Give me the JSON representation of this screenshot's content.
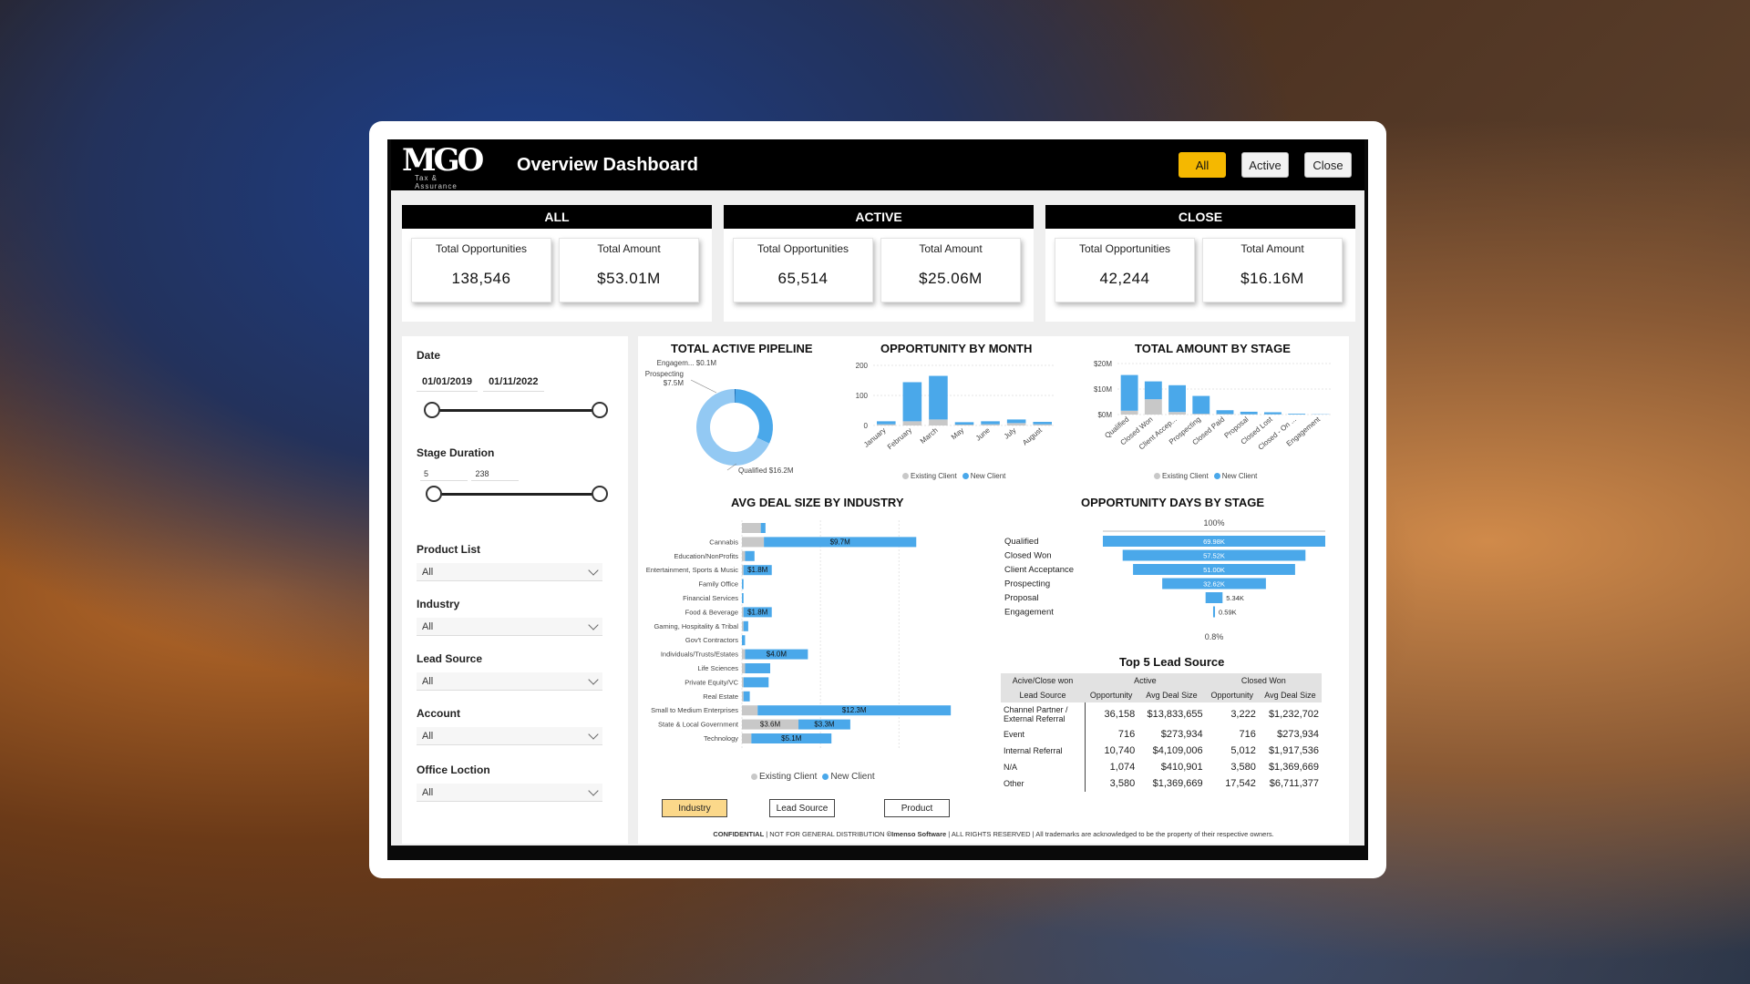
{
  "header": {
    "logo": "MGO",
    "logo_sub": "Tax & Assurance",
    "title": "Overview Dashboard",
    "buttons": {
      "all": "All",
      "active": "Active",
      "close": "Close"
    }
  },
  "kpi": [
    {
      "heading": "ALL",
      "opp_label": "Total Opportunities",
      "opp_value": "138,546",
      "amt_label": "Total Amount",
      "amt_value": "$53.01M"
    },
    {
      "heading": "ACTIVE",
      "opp_label": "Total Opportunities",
      "opp_value": "65,514",
      "amt_label": "Total Amount",
      "amt_value": "$25.06M"
    },
    {
      "heading": "CLOSE",
      "opp_label": "Total Opportunities",
      "opp_value": "42,244",
      "amt_label": "Total Amount",
      "amt_value": "$16.16M"
    }
  ],
  "filters": {
    "date_label": "Date",
    "date_start": "01/01/2019",
    "date_end": "01/11/2022",
    "stage_label": "Stage Duration",
    "stage_min": "5",
    "stage_max": "238",
    "product_label": "Product List",
    "product_value": "All",
    "industry_label": "Industry",
    "industry_value": "All",
    "lead_label": "Lead Source",
    "lead_value": "All",
    "account_label": "Account",
    "account_value": "All",
    "office_label": "Office Loction",
    "office_value": "All"
  },
  "colors": {
    "new_client": "#4aa8ea",
    "existing_client": "#c8c8c8",
    "pipeline_light": "#93c9f3",
    "accent": "#f5b800",
    "selected_tab": "#fbd88a"
  },
  "chart_data": [
    {
      "id": "pipeline",
      "type": "pie",
      "title": "TOTAL ACTIVE PIPELINE",
      "labels": [
        "Engagem...",
        "Prospecting",
        "Qualified"
      ],
      "values": [
        0.1,
        7.5,
        16.2
      ],
      "value_labels": [
        "$0.1M",
        "$7.5M",
        "$16.2M"
      ]
    },
    {
      "id": "by_month",
      "type": "bar",
      "title": "OPPORTUNITY BY MONTH",
      "categories": [
        "January",
        "February",
        "March",
        "May",
        "June",
        "July",
        "August"
      ],
      "yticks": [
        "0",
        "100",
        "200"
      ],
      "ylim": [
        0,
        200
      ],
      "series": [
        {
          "name": "Existing Client",
          "values": [
            4,
            14,
            20,
            3,
            4,
            8,
            4
          ]
        },
        {
          "name": "New Client",
          "values": [
            10,
            130,
            145,
            8,
            10,
            12,
            8
          ]
        }
      ]
    },
    {
      "id": "by_stage",
      "type": "bar",
      "title": "TOTAL AMOUNT BY STAGE",
      "categories": [
        "Qualified",
        "Closed Won",
        "Client Accep...",
        "Prospecting",
        "Closed Paid",
        "Proposal",
        "Closed Lost",
        "Closed - On ...",
        "Engagement"
      ],
      "yticks": [
        "$0M",
        "$10M",
        "$20M"
      ],
      "ylim": [
        0,
        20
      ],
      "series": [
        {
          "name": "Existing Client",
          "values": [
            1.5,
            6.0,
            1.0,
            0.3,
            0.2,
            0.1,
            0.1,
            0.0,
            0.0
          ]
        },
        {
          "name": "New Client",
          "values": [
            14.0,
            7.0,
            10.5,
            7.0,
            1.5,
            1.0,
            0.8,
            0.3,
            0.1
          ]
        }
      ]
    },
    {
      "id": "deal_size",
      "type": "bar",
      "title": "AVG DEAL SIZE BY INDUSTRY",
      "categories": [
        "",
        "Cannabis",
        "Education/NonProfits",
        "Entertainment, Sports & Music",
        "Family Office",
        "Financial Services",
        "Food & Beverage",
        "Gaming, Hospitality & Tribal",
        "Gov't Contractors",
        "Individuals/Trusts/Estates",
        "Life Sciences",
        "Private Equity/VC",
        "Real Estate",
        "Small to Medium Enterprises",
        "State & Local Government",
        "Technology"
      ],
      "xticks": [
        "$0M",
        "$5M",
        "$10M"
      ],
      "xlim": [
        0,
        13
      ],
      "series": [
        {
          "name": "Existing Client",
          "values": [
            1.2,
            1.4,
            0.2,
            0.1,
            0.0,
            0.0,
            0.1,
            0.1,
            0.0,
            0.2,
            0.2,
            0.1,
            0.1,
            1.0,
            3.6,
            0.6
          ]
        },
        {
          "name": "New Client",
          "values": [
            0.3,
            9.7,
            0.6,
            1.8,
            0.1,
            0.1,
            1.8,
            0.3,
            0.2,
            4.0,
            1.6,
            1.6,
            0.4,
            12.3,
            3.3,
            5.1
          ]
        }
      ],
      "data_labels": [
        "",
        "$9.7M",
        "",
        "$1.8M",
        "",
        "",
        "$1.8M",
        "",
        "",
        "$4.0M",
        "",
        "",
        "",
        "$12.3M",
        "$3.3M",
        "$5.1M"
      ],
      "existing_labels": [
        "",
        "",
        "",
        "",
        "",
        "",
        "",
        "",
        "",
        "",
        "",
        "",
        "",
        "",
        "$3.6M",
        ""
      ]
    },
    {
      "id": "days_by_stage",
      "type": "bar",
      "title": "OPPORTUNITY DAYS BY STAGE",
      "categories": [
        "Qualified",
        "Closed Won",
        "Client Acceptance",
        "Prospecting",
        "Proposal",
        "Engagement"
      ],
      "values": [
        69.98,
        57.52,
        51.0,
        32.62,
        5.34,
        0.59
      ],
      "value_labels": [
        "69.98K",
        "57.52K",
        "51.00K",
        "32.62K",
        "5.34K",
        "0.59K"
      ],
      "top_label": "100%",
      "bottom_label": "0.8%"
    }
  ],
  "tabs": {
    "industry": "Industry",
    "lead_source": "Lead Source",
    "product": "Product"
  },
  "lead_table": {
    "title": "Top 5 Lead Source",
    "group_header": "Acive/Close won",
    "active_header": "Active",
    "closed_header": "Closed Won",
    "col_lead": "Lead Source",
    "col_opp": "Opportunity",
    "col_avg": "Avg Deal Size",
    "rows": [
      {
        "lead": "Channel Partner / External Referral",
        "a_opp": "36,158",
        "a_avg": "$13,833,655",
        "c_opp": "3,222",
        "c_avg": "$1,232,702"
      },
      {
        "lead": "Event",
        "a_opp": "716",
        "a_avg": "$273,934",
        "c_opp": "716",
        "c_avg": "$273,934"
      },
      {
        "lead": "Internal Referral",
        "a_opp": "10,740",
        "a_avg": "$4,109,006",
        "c_opp": "5,012",
        "c_avg": "$1,917,536"
      },
      {
        "lead": "N/A",
        "a_opp": "1,074",
        "a_avg": "$410,901",
        "c_opp": "3,580",
        "c_avg": "$1,369,669"
      },
      {
        "lead": "Other",
        "a_opp": "3,580",
        "a_avg": "$1,369,669",
        "c_opp": "17,542",
        "c_avg": "$6,711,377"
      }
    ]
  },
  "footer": {
    "bold1": "CONFIDENTIAL",
    "mid": " | NOT FOR GENERAL DISTRIBUTION ",
    "bold2": "©Imenso Software",
    "rest": " | ALL RIGHTS RESERVED | All trademarks are acknowledged to be the property of their respective owners."
  }
}
